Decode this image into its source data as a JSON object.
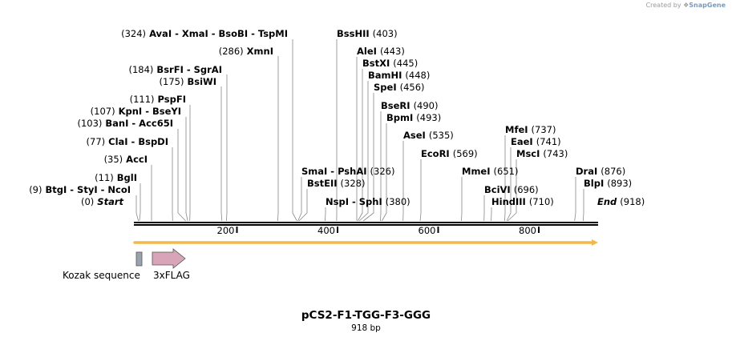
{
  "credit": {
    "created_by": "Created by",
    "brand": "SnapGene"
  },
  "plasmid": {
    "name": "pCS2-F1-TGG-F3-GGG",
    "length_label": "918 bp",
    "length": 918
  },
  "ruler": {
    "ticks": [
      200,
      400,
      600,
      800
    ]
  },
  "sites": [
    {
      "line": "(324)  AvaI  -  XmaI  -  BsoBI  -  TspMI",
      "pos": 324
    },
    {
      "line": "(286)  XmnI",
      "pos": 286
    },
    {
      "line": "(184)  BsrFI  -  SgrAI",
      "pos": 184
    },
    {
      "line": "(175)  BsiWI",
      "pos": 175
    },
    {
      "line": "(111)  PspFI",
      "pos": 111
    },
    {
      "line": "(107)  KpnI  -  BseYI",
      "pos": 107
    },
    {
      "line": "(103)  BanI  -  Acc65I",
      "pos": 103
    },
    {
      "line": "(77)  ClaI  -  BspDI",
      "pos": 77
    },
    {
      "line": "(35)  AccI",
      "pos": 35
    },
    {
      "line": "(11)  BglI",
      "pos": 11
    },
    {
      "line": "(9)  BtgI  -  StyI  -  NcoI",
      "pos": 9
    },
    {
      "line": "(0)  Start",
      "pos": 0
    },
    {
      "line": "BssHII  (403)",
      "pos": 403
    },
    {
      "line": "AleI  (443)",
      "pos": 443
    },
    {
      "line": "BstXI  (445)",
      "pos": 445
    },
    {
      "line": "BamHI  (448)",
      "pos": 448
    },
    {
      "line": "SpeI  (456)",
      "pos": 456
    },
    {
      "line": "BseRI  (490)",
      "pos": 490
    },
    {
      "line": "BpmI  (493)",
      "pos": 493
    },
    {
      "line": "AseI  (535)",
      "pos": 535
    },
    {
      "line": "EcoRI  (569)",
      "pos": 569
    },
    {
      "line": "SmaI  -  PshAI  (326)",
      "pos": 326
    },
    {
      "line": "BstEII  (328)",
      "pos": 328
    },
    {
      "line": "NspI  -  SphI  (380)",
      "pos": 380
    },
    {
      "line": "MmeI  (651)",
      "pos": 651
    },
    {
      "line": "MfeI  (737)",
      "pos": 737
    },
    {
      "line": "EaeI  (741)",
      "pos": 741
    },
    {
      "line": "MscI  (743)",
      "pos": 743
    },
    {
      "line": "BciVI  (696)",
      "pos": 696
    },
    {
      "line": "HindIII  (710)",
      "pos": 710
    },
    {
      "line": "DraI  (876)",
      "pos": 876
    },
    {
      "line": "BlpI  (893)",
      "pos": 893
    },
    {
      "line": "End  (918)",
      "pos": 918
    }
  ],
  "features": [
    {
      "name": "Kozak sequence",
      "type": "box",
      "color": "#9aa3ad"
    },
    {
      "name": "3xFLAG",
      "type": "arrow",
      "color": "#d8a4b8"
    }
  ],
  "orf_color": "#f2b84b"
}
